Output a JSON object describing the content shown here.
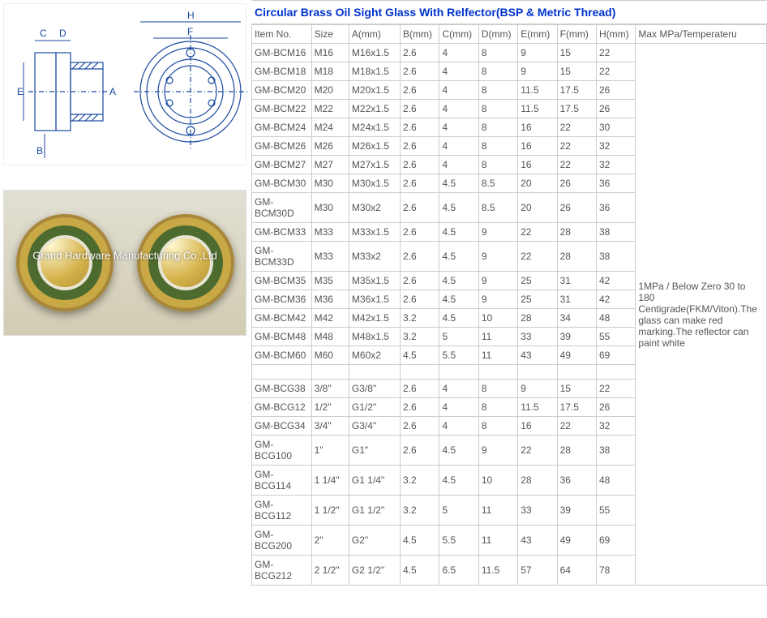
{
  "title": "Circular Brass Oil Sight Glass With Relfector(BSP & Metric Thread)",
  "diagram": {
    "labels": [
      "A",
      "B",
      "C",
      "D",
      "E",
      "F",
      "H"
    ],
    "stroke_color": "#1a4aa0"
  },
  "photo": {
    "watermark": "Grand Hardware Manufacturing Co.,Ltd",
    "background_gradient": [
      "#e2e0d4",
      "#d1ccb2"
    ],
    "brass_colors": [
      "#fff8d0",
      "#d4b24a",
      "#8a6a1f"
    ]
  },
  "table": {
    "background_color": "#ffffff",
    "border_color": "#cccccc",
    "header_text_color": "#555555",
    "body_text_color": "#555555",
    "title_color": "#0033cc",
    "font_size": 12,
    "columns": [
      "Item No.",
      "Size",
      "A(mm)",
      "B(mm)",
      "C(mm)",
      "D(mm)",
      "E(mm)",
      "F(mm)",
      "H(mm)",
      "Max MPa/Temperateru"
    ],
    "note": "1MPa  / Below Zero 30 to 180 Centigrade(FKM/Viton).The glass can make red marking.The reflector can paint white",
    "rows_metric": [
      [
        "GM-BCM16",
        "M16",
        "M16x1.5",
        "2.6",
        "4",
        "8",
        "9",
        "15",
        "22"
      ],
      [
        "GM-BCM18",
        "M18",
        "M18x1.5",
        "2.6",
        "4",
        "8",
        "9",
        "15",
        "22"
      ],
      [
        "GM-BCM20",
        "M20",
        "M20x1.5",
        "2.6",
        "4",
        "8",
        "11.5",
        "17.5",
        "26"
      ],
      [
        "GM-BCM22",
        "M22",
        "M22x1.5",
        "2.6",
        "4",
        "8",
        "11.5",
        "17.5",
        "26"
      ],
      [
        "GM-BCM24",
        "M24",
        "M24x1.5",
        "2.6",
        "4",
        "8",
        "16",
        "22",
        "30"
      ],
      [
        "GM-BCM26",
        "M26",
        "M26x1.5",
        "2.6",
        "4",
        "8",
        "16",
        "22",
        "32"
      ],
      [
        "GM-BCM27",
        "M27",
        "M27x1.5",
        "2.6",
        "4",
        "8",
        "16",
        "22",
        "32"
      ],
      [
        "GM-BCM30",
        "M30",
        "M30x1.5",
        "2.6",
        "4.5",
        "8.5",
        "20",
        "26",
        "36"
      ],
      [
        "GM-BCM30D",
        "M30",
        "M30x2",
        "2.6",
        "4.5",
        "8.5",
        "20",
        "26",
        "36"
      ],
      [
        "GM-BCM33",
        "M33",
        "M33x1.5",
        "2.6",
        "4.5",
        "9",
        "22",
        "28",
        "38"
      ],
      [
        "GM-BCM33D",
        "M33",
        "M33x2",
        "2.6",
        "4.5",
        "9",
        "22",
        "28",
        "38"
      ],
      [
        "GM-BCM35",
        "M35",
        "M35x1.5",
        "2.6",
        "4.5",
        "9",
        "25",
        "31",
        "42"
      ],
      [
        "GM-BCM36",
        "M36",
        "M36x1.5",
        "2.6",
        "4.5",
        "9",
        "25",
        "31",
        "42"
      ],
      [
        "GM-BCM42",
        "M42",
        "M42x1.5",
        "3.2",
        "4.5",
        "10",
        "28",
        "34",
        "48"
      ],
      [
        "GM-BCM48",
        "M48",
        "M48x1.5",
        "3.2",
        "5",
        "11",
        "33",
        "39",
        "55"
      ],
      [
        "GM-BCM60",
        "M60",
        "M60x2",
        "4.5",
        "5.5",
        "11",
        "43",
        "49",
        "69"
      ]
    ],
    "rows_bsp": [
      [
        "GM-BCG38",
        "3/8\"",
        "G3/8\"",
        "2.6",
        "4",
        "8",
        "9",
        "15",
        "22"
      ],
      [
        "GM-BCG12",
        "1/2\"",
        "G1/2\"",
        "2.6",
        "4",
        "8",
        "11.5",
        "17.5",
        "26"
      ],
      [
        "GM-BCG34",
        "3/4\"",
        "G3/4\"",
        "2.6",
        "4",
        "8",
        "16",
        "22",
        "32"
      ],
      [
        "GM-BCG100",
        "1\"",
        "G1\"",
        "2.6",
        "4.5",
        "9",
        "22",
        "28",
        "38"
      ],
      [
        "GM-BCG114",
        "1 1/4\"",
        "G1 1/4\"",
        "3.2",
        "4.5",
        "10",
        "28",
        "36",
        "48"
      ],
      [
        "GM-BCG112",
        "1 1/2\"",
        "G1 1/2\"",
        "3.2",
        "5",
        "11",
        "33",
        "39",
        "55"
      ],
      [
        "GM-BCG200",
        "2\"",
        "G2\"",
        "4.5",
        "5.5",
        "11",
        "43",
        "49",
        "69"
      ],
      [
        "GM-BCG212",
        "2 1/2\"",
        "G2 1/2\"",
        "4.5",
        "6.5",
        "11.5",
        "57",
        "64",
        "78"
      ]
    ]
  }
}
